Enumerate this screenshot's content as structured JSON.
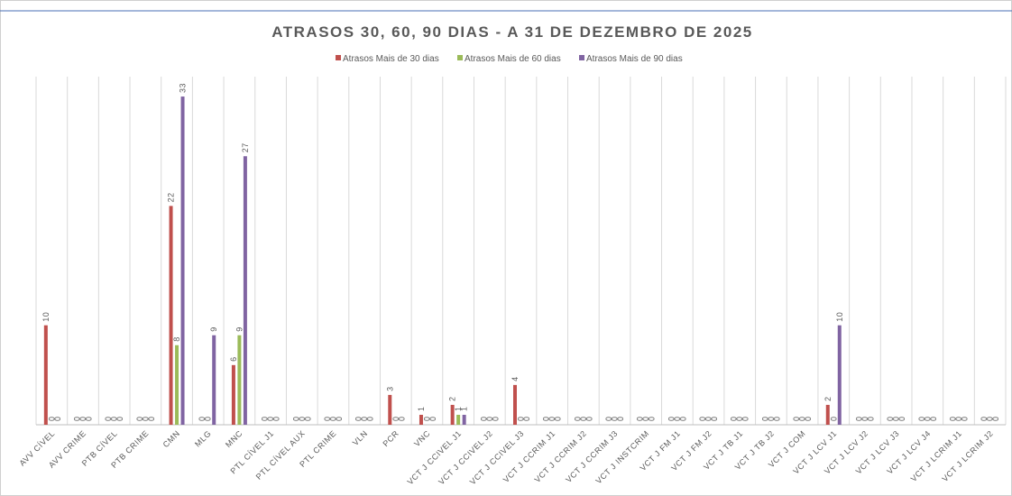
{
  "chart_data": {
    "type": "bar",
    "title": "ATRASOS 30, 60, 90 DIAS - A 31 DE DEZEMBRO DE 2025",
    "categories": [
      "AVV CÍVEL",
      "AVV CRIME",
      "PTB CÍVEL",
      "PTB CRIME",
      "CMN",
      "MLG",
      "MNC",
      "PTL CÍVEL J1",
      "PTL CÍVEL AUX",
      "PTL CRIME",
      "VLN",
      "PCR",
      "VNC",
      "VCT J CCIVEL J1",
      "VCT J CCIVEL J2",
      "VCT J CCIVEL J3",
      "VCT J CCRIM J1",
      "VCT J CCRIM J2",
      "VCT J CCRIM J3",
      "VCT J INSTCRIM",
      "VCT J FM J1",
      "VCT J FM J2",
      "VCT J TB J1",
      "VCT J TB J2",
      "VCT J COM",
      "VCT J LCV J1",
      "VCT J LCV J2",
      "VCT J LCV J3",
      "VCT J LCV J4",
      "VCT J LCRIM J1",
      "VCT J LCRIM J2"
    ],
    "series": [
      {
        "name": "Atrasos Mais de 30 dias",
        "color": "#c0504d",
        "values": [
          10,
          0,
          0,
          0,
          22,
          0,
          6,
          0,
          0,
          0,
          0,
          3,
          1,
          2,
          0,
          4,
          0,
          0,
          0,
          0,
          0,
          0,
          0,
          0,
          0,
          2,
          0,
          0,
          0,
          0,
          0
        ]
      },
      {
        "name": "Atrasos Mais de 60 dias",
        "color": "#9bbb59",
        "values": [
          0,
          0,
          0,
          0,
          8,
          0,
          9,
          0,
          0,
          0,
          0,
          0,
          0,
          1,
          0,
          0,
          0,
          0,
          0,
          0,
          0,
          0,
          0,
          0,
          0,
          0,
          0,
          0,
          0,
          0,
          0
        ]
      },
      {
        "name": "Atrasos Mais de 90 dias",
        "color": "#8064a2",
        "values": [
          0,
          0,
          0,
          0,
          33,
          9,
          27,
          0,
          0,
          0,
          0,
          0,
          0,
          1,
          0,
          0,
          0,
          0,
          0,
          0,
          0,
          0,
          0,
          0,
          0,
          10,
          0,
          0,
          0,
          0,
          0
        ]
      }
    ],
    "ylim": [
      0,
      35
    ],
    "legend": "top"
  }
}
